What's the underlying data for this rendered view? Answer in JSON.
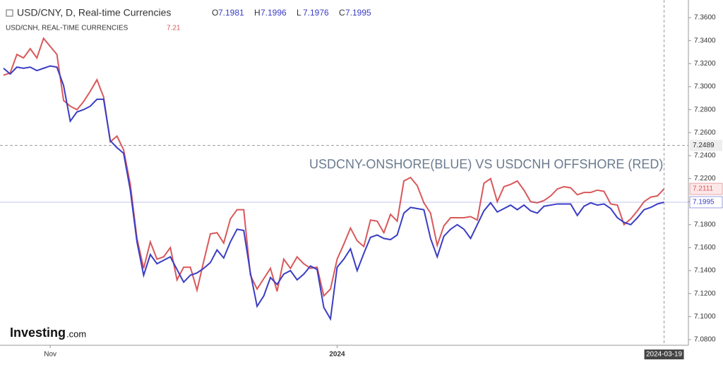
{
  "chart_data": {
    "type": "line",
    "title": "USD/CNY, D, Real-time Currencies",
    "ohlc": [
      {
        "label": "O",
        "value": 7.1981
      },
      {
        "label": "H",
        "value": 7.1996
      },
      {
        "label": "L",
        "value": 7.1976
      },
      {
        "label": "C",
        "value": 7.1995
      }
    ],
    "subtitle": "USD/CNH, REAL-TIME CURRENCIES",
    "subtitle_value": 7.21,
    "annotation": "USDCNY-ONSHORE(BLUE) VS USDCNH OFFSHORE (RED)",
    "logo": [
      "Investing",
      ".com"
    ],
    "crosshair_y": 7.2489,
    "categories": [
      null,
      null,
      null,
      null,
      null,
      null,
      null,
      "Nov",
      null,
      null,
      null,
      null,
      null,
      null,
      null,
      null,
      null,
      null,
      null,
      null,
      null,
      null,
      null,
      null,
      null,
      null,
      null,
      null,
      null,
      null,
      null,
      null,
      null,
      null,
      null,
      null,
      null,
      null,
      null,
      null,
      null,
      null,
      null,
      null,
      null,
      null,
      null,
      null,
      null,
      null,
      "2024",
      null,
      null,
      null,
      null,
      null,
      null,
      null,
      null,
      null,
      null,
      null,
      null,
      null,
      null,
      null,
      null,
      null,
      null,
      null,
      null,
      null,
      null,
      null,
      null,
      null,
      null,
      null,
      null,
      null,
      null,
      null,
      null,
      null,
      null,
      null,
      null,
      null,
      null,
      null,
      null,
      null,
      null,
      null,
      null,
      null,
      null,
      null,
      null,
      "2024-03-19"
    ],
    "series": [
      {
        "name": "USD/CNH",
        "color": "#d9585a",
        "values": [
          7.31,
          7.312,
          7.328,
          7.325,
          7.333,
          7.325,
          7.342,
          7.335,
          7.328,
          7.288,
          7.283,
          7.28,
          7.287,
          7.296,
          7.306,
          7.291,
          7.252,
          7.257,
          7.245,
          7.215,
          7.168,
          7.142,
          7.165,
          7.15,
          7.152,
          7.16,
          7.132,
          7.143,
          7.143,
          7.123,
          7.148,
          7.172,
          7.173,
          7.164,
          7.185,
          7.193,
          7.193,
          7.136,
          7.124,
          7.133,
          7.142,
          7.122,
          7.15,
          7.142,
          7.152,
          7.146,
          7.142,
          7.143,
          7.118,
          7.124,
          7.15,
          7.163,
          7.177,
          7.166,
          7.161,
          7.184,
          7.183,
          7.173,
          7.189,
          7.183,
          7.218,
          7.221,
          7.214,
          7.199,
          7.19,
          7.162,
          7.179,
          7.186,
          7.186,
          7.186,
          7.187,
          7.184,
          7.216,
          7.22,
          7.2,
          7.213,
          7.215,
          7.218,
          7.21,
          7.2,
          7.199,
          7.201,
          7.205,
          7.211,
          7.213,
          7.212,
          7.206,
          7.208,
          7.208,
          7.21,
          7.209,
          7.198,
          7.197,
          7.18,
          7.185,
          7.192,
          7.2,
          7.204,
          7.205,
          7.2111
        ]
      },
      {
        "name": "USD/CNY",
        "color": "#3a3dc4",
        "values": [
          7.316,
          7.311,
          7.317,
          7.316,
          7.317,
          7.314,
          7.316,
          7.318,
          7.317,
          7.301,
          7.27,
          7.278,
          7.28,
          7.283,
          7.289,
          7.289,
          7.253,
          7.247,
          7.242,
          7.21,
          7.165,
          7.136,
          7.154,
          7.146,
          7.149,
          7.152,
          7.141,
          7.13,
          7.136,
          7.138,
          7.142,
          7.147,
          7.158,
          7.151,
          7.165,
          7.176,
          7.175,
          7.138,
          7.109,
          7.118,
          7.134,
          7.128,
          7.137,
          7.14,
          7.132,
          7.137,
          7.144,
          7.141,
          7.108,
          7.098,
          7.143,
          7.15,
          7.159,
          7.14,
          7.155,
          7.169,
          7.171,
          7.168,
          7.167,
          7.171,
          7.19,
          7.195,
          7.194,
          7.193,
          7.168,
          7.152,
          7.17,
          7.176,
          7.18,
          7.176,
          7.168,
          7.18,
          7.192,
          7.199,
          7.191,
          7.194,
          7.197,
          7.193,
          7.197,
          7.192,
          7.19,
          7.196,
          7.197,
          7.198,
          7.198,
          7.198,
          7.188,
          7.196,
          7.199,
          7.197,
          7.198,
          7.194,
          7.186,
          7.182,
          7.18,
          7.186,
          7.193,
          7.195,
          7.198,
          7.1995
        ]
      }
    ],
    "ylim": [
      7.0751,
      7.3723
    ],
    "yticks": [
      {
        "value": 7.36,
        "label": "7.3600"
      },
      {
        "value": 7.34,
        "label": "7.3400"
      },
      {
        "value": 7.32,
        "label": "7.3200"
      },
      {
        "value": 7.3,
        "label": "7.3000"
      },
      {
        "value": 7.28,
        "label": "7.2800"
      },
      {
        "value": 7.26,
        "label": "7.2600"
      },
      {
        "value": 7.24,
        "label": "7.2400"
      },
      {
        "value": 7.22,
        "label": "7.2200"
      },
      {
        "value": 7.2,
        "label": "7.2000"
      },
      {
        "value": 7.18,
        "label": "7.1800"
      },
      {
        "value": 7.16,
        "label": "7.1600"
      },
      {
        "value": 7.14,
        "label": "7.1400"
      },
      {
        "value": 7.12,
        "label": "7.1200"
      },
      {
        "value": 7.1,
        "label": "7.1000"
      },
      {
        "value": 7.08,
        "label": "7.0800"
      }
    ]
  }
}
